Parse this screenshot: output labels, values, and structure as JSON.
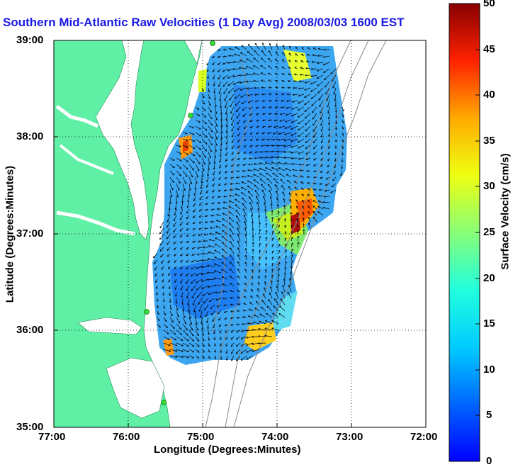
{
  "title": "Southern Mid-Atlantic Raw Velocities (1 Day Avg) 2008/03/03 1600 EST",
  "xlabel": "Longitude (Degrees:Minutes)",
  "ylabel": "Latitude (Degrees:Minutes)",
  "x_ticks": [
    "77:00",
    "76:00",
    "75:00",
    "74:00",
    "73:00",
    "72:00"
  ],
  "y_ticks": [
    "39:00",
    "38:00",
    "37:00",
    "36:00",
    "35:00"
  ],
  "colorbar": {
    "label": "Surface Velocity (cm/s)",
    "ticks": [
      "50",
      "45",
      "40",
      "35",
      "30",
      "25",
      "20",
      "15",
      "10",
      "5",
      "0"
    ],
    "min": 0,
    "max": 50,
    "colormap": "jet"
  },
  "colors": {
    "land": "#5ff0a6",
    "title": "#1a1ae6",
    "vector": "#000000",
    "station": "#33dd33",
    "bathymetry": "#888888"
  },
  "map": {
    "lon_range": [
      -77,
      -72
    ],
    "lat_range": [
      35,
      39
    ],
    "grid": "dotted"
  }
}
